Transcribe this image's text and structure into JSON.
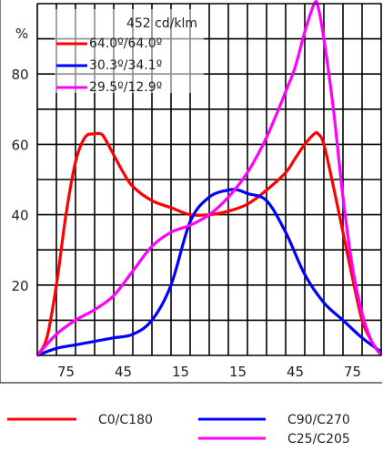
{
  "chart_data": {
    "type": "line",
    "ylabel": "%",
    "ylim": [
      0,
      100
    ],
    "yticks": [
      "20",
      "40",
      "60",
      "80"
    ],
    "xticks": [
      "75",
      "45",
      "15",
      "15",
      "45",
      "75"
    ],
    "x_domain": [
      -90,
      90
    ],
    "grid": true,
    "legend_box": {
      "header": "452 cd/klm",
      "entries": [
        "64.0º/64.0º",
        "30.3º/34.1º",
        "29.5º/12.9º"
      ]
    },
    "series": [
      {
        "name": "C0/C180",
        "color": "#ff0000",
        "x": [
          -90,
          -85,
          -80,
          -75,
          -70,
          -65,
          -60,
          -57,
          -55,
          -50,
          -45,
          -40,
          -30,
          -20,
          -10,
          0,
          10,
          20,
          30,
          40,
          45,
          50,
          55,
          57,
          60,
          65,
          70,
          75,
          80,
          85,
          90
        ],
        "y": [
          0,
          5,
          20,
          40,
          55,
          62,
          63,
          63,
          62,
          57,
          52,
          48,
          44,
          42,
          40,
          40,
          41,
          43,
          47,
          52,
          56,
          60,
          63,
          63,
          60,
          48,
          35,
          22,
          10,
          4,
          0
        ]
      },
      {
        "name": "C90/C270",
        "color": "#0000ff",
        "x": [
          -90,
          -80,
          -70,
          -60,
          -50,
          -40,
          -30,
          -20,
          -10,
          0,
          10,
          15,
          20,
          30,
          40,
          50,
          60,
          70,
          80,
          90
        ],
        "y": [
          0,
          2,
          3,
          4,
          5,
          6,
          10,
          20,
          38,
          45,
          47,
          47,
          46,
          44,
          35,
          23,
          15,
          10,
          5,
          1
        ]
      },
      {
        "name": "C25/C205",
        "color": "#ff00ff",
        "x": [
          -90,
          -80,
          -70,
          -60,
          -50,
          -40,
          -30,
          -20,
          -10,
          0,
          10,
          20,
          30,
          40,
          45,
          50,
          55,
          57,
          60,
          65,
          70,
          75,
          80,
          85,
          90
        ],
        "y": [
          0,
          6,
          10,
          13,
          17,
          24,
          31,
          35,
          37,
          40,
          45,
          52,
          62,
          75,
          82,
          92,
          100,
          99,
          90,
          70,
          45,
          25,
          12,
          4,
          0
        ]
      }
    ],
    "bottom_legend": [
      "C0/C180",
      "C90/C270",
      "C25/C205"
    ]
  }
}
